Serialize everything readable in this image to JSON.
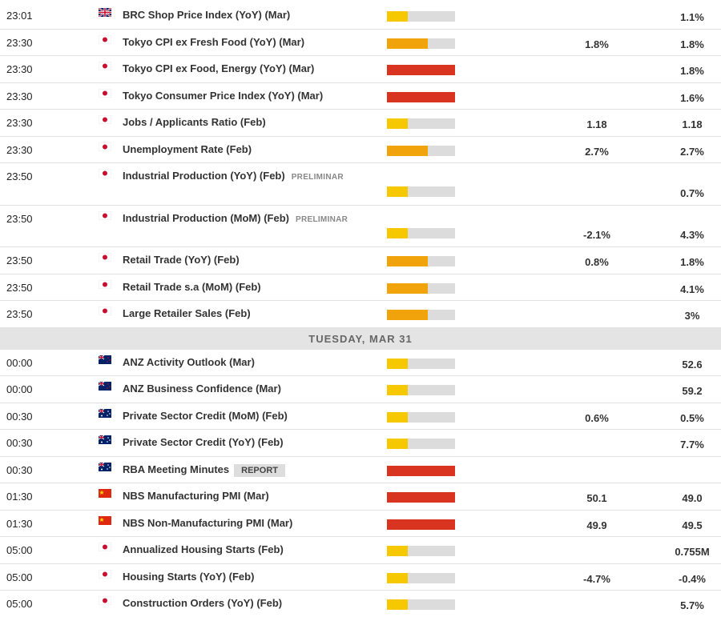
{
  "sections": [
    {
      "rows": [
        {
          "time": "23:01",
          "flag": "gb",
          "event": "BRC Shop Price Index (YoY) (Mar)",
          "impact": 1,
          "previous": "1.1%"
        },
        {
          "time": "23:30",
          "flag": "jp",
          "event": "Tokyo CPI ex Fresh Food (YoY) (Mar)",
          "impact": 2,
          "consensus": "1.8%",
          "previous": "1.8%"
        },
        {
          "time": "23:30",
          "flag": "jp",
          "event": "Tokyo CPI ex Food, Energy (YoY) (Mar)",
          "impact": 3,
          "previous": "1.8%"
        },
        {
          "time": "23:30",
          "flag": "jp",
          "event": "Tokyo Consumer Price Index (YoY) (Mar)",
          "impact": 3,
          "previous": "1.6%"
        },
        {
          "time": "23:30",
          "flag": "jp",
          "event": "Jobs / Applicants Ratio (Feb)",
          "impact": 1,
          "consensus": "1.18",
          "previous": "1.18"
        },
        {
          "time": "23:30",
          "flag": "jp",
          "event": "Unemployment Rate (Feb)",
          "impact": 2,
          "consensus": "2.7%",
          "previous": "2.7%"
        },
        {
          "time": "23:50",
          "flag": "jp",
          "event": "Industrial Production (YoY) (Feb)",
          "tag": "PRELIMINAR",
          "impact": 1,
          "previous": "0.7%"
        },
        {
          "time": "23:50",
          "flag": "jp",
          "event": "Industrial Production (MoM) (Feb)",
          "tag": "PRELIMINAR",
          "impact": 1,
          "consensus": "-2.1%",
          "previous": "4.3%"
        },
        {
          "time": "23:50",
          "flag": "jp",
          "event": "Retail Trade (YoY) (Feb)",
          "impact": 2,
          "consensus": "0.8%",
          "previous": "1.8%"
        },
        {
          "time": "23:50",
          "flag": "jp",
          "event": "Retail Trade s.a (MoM) (Feb)",
          "impact": 2,
          "previous": "4.1%"
        },
        {
          "time": "23:50",
          "flag": "jp",
          "event": "Large Retailer Sales (Feb)",
          "impact": 2,
          "previous": "3%"
        }
      ]
    },
    {
      "header": "TUESDAY, MAR 31",
      "rows": [
        {
          "time": "00:00",
          "flag": "nz",
          "event": "ANZ Activity Outlook (Mar)",
          "impact": 1,
          "previous": "52.6"
        },
        {
          "time": "00:00",
          "flag": "nz",
          "event": "ANZ Business Confidence (Mar)",
          "impact": 1,
          "previous": "59.2"
        },
        {
          "time": "00:30",
          "flag": "au",
          "event": "Private Sector Credit (MoM) (Feb)",
          "impact": 1,
          "consensus": "0.6%",
          "previous": "0.5%"
        },
        {
          "time": "00:30",
          "flag": "au",
          "event": "Private Sector Credit (YoY) (Feb)",
          "impact": 1,
          "previous": "7.7%"
        },
        {
          "time": "00:30",
          "flag": "au",
          "event": "RBA Meeting Minutes",
          "badge": "REPORT",
          "impact": 3
        },
        {
          "time": "01:30",
          "flag": "cn",
          "event": "NBS Manufacturing PMI (Mar)",
          "impact": 3,
          "consensus": "50.1",
          "previous": "49.0"
        },
        {
          "time": "01:30",
          "flag": "cn",
          "event": "NBS Non-Manufacturing PMI (Mar)",
          "impact": 3,
          "consensus": "49.9",
          "previous": "49.5"
        },
        {
          "time": "05:00",
          "flag": "jp",
          "event": "Annualized Housing Starts (Feb)",
          "impact": 1,
          "previous": "0.755M"
        },
        {
          "time": "05:00",
          "flag": "jp",
          "event": "Housing Starts (YoY) (Feb)",
          "impact": 1,
          "consensus": "-4.7%",
          "previous": "-0.4%"
        },
        {
          "time": "05:00",
          "flag": "jp",
          "event": "Construction Orders (YoY) (Feb)",
          "impact": 1,
          "previous": "5.7%"
        }
      ]
    }
  ]
}
